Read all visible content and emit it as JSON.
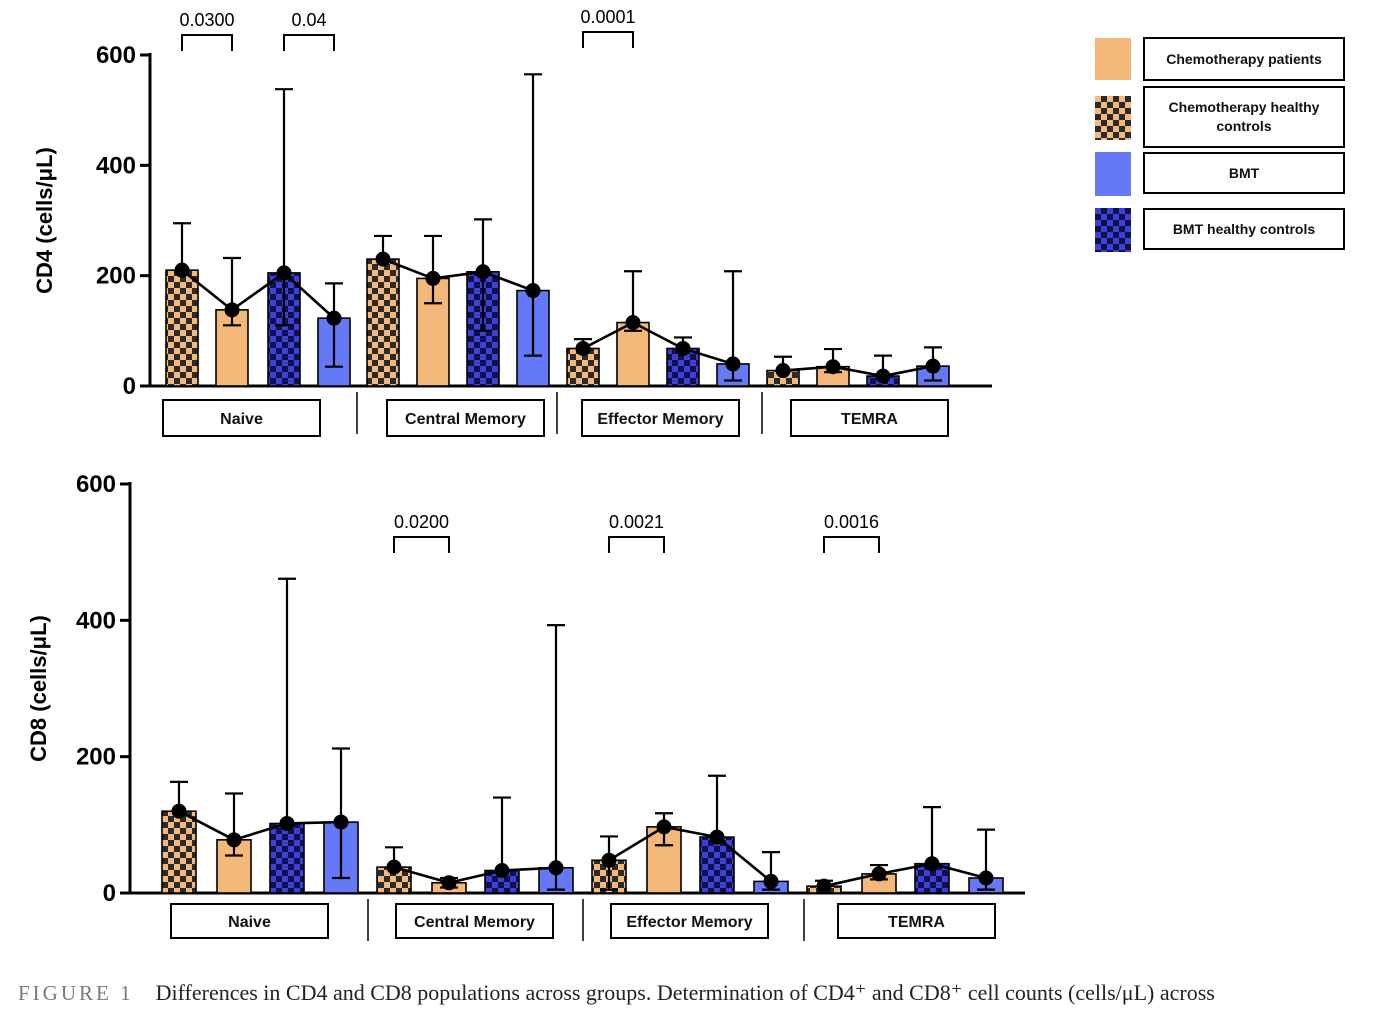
{
  "legend": {
    "items": [
      {
        "label": "Chemotherapy patients",
        "fill": "#f4b97a",
        "pattern": "solid"
      },
      {
        "label": "Chemotherapy healthy controls",
        "fill": "#f4b97a",
        "pattern": "checker"
      },
      {
        "label": "BMT",
        "fill": "#6579f7",
        "pattern": "solid"
      },
      {
        "label": "BMT healthy controls",
        "fill": "#3c3fd8",
        "pattern": "checker"
      }
    ]
  },
  "caption": {
    "label": "FIGURE 1",
    "text": "Differences in CD4 and CD8 populations across groups. Determination of CD4⁺ and CD8⁺ cell counts (cells/μL) across"
  },
  "colors": {
    "chemo": "#f4b97a",
    "bmt": "#6579f7",
    "bmt_dark": "#3c3fd8",
    "checker_dark": "#1a1a1a",
    "axis": "#000000"
  },
  "chart_data": [
    {
      "type": "bar",
      "ylabel": "CD4 (cells/μL)",
      "ylim": [
        0,
        600
      ],
      "yticks": [
        0,
        200,
        400,
        600
      ],
      "categories": [
        "Naive",
        "Central Memory",
        "Effector Memory",
        "TEMRA"
      ],
      "series": [
        {
          "name": "Chemotherapy healthy controls",
          "values": [
            210,
            230,
            68,
            28
          ],
          "err_high": [
            295,
            272,
            85,
            53
          ],
          "err_low": [
            null,
            null,
            null,
            null
          ]
        },
        {
          "name": "Chemotherapy patients",
          "values": [
            138,
            195,
            115,
            35
          ],
          "err_high": [
            232,
            272,
            208,
            67
          ],
          "err_low": [
            110,
            150,
            100,
            25
          ]
        },
        {
          "name": "BMT healthy controls",
          "values": [
            205,
            207,
            68,
            18
          ],
          "err_high": [
            538,
            302,
            88,
            55
          ],
          "err_low": [
            110,
            100,
            null,
            null
          ]
        },
        {
          "name": "BMT",
          "values": [
            123,
            173,
            40,
            36
          ],
          "err_high": [
            186,
            565,
            208,
            70
          ],
          "err_low": [
            35,
            55,
            10,
            10
          ]
        }
      ],
      "points": [
        [
          210,
          138,
          205,
          123
        ],
        [
          230,
          195,
          207,
          173
        ],
        [
          68,
          115,
          68,
          40
        ],
        [
          28,
          35,
          18,
          36
        ]
      ],
      "significance": [
        {
          "label": "0.0300",
          "category": 0,
          "from": 0,
          "to": 1
        },
        {
          "label": "0.04",
          "category": 0,
          "from": 2,
          "to": 3
        },
        {
          "label": "0.0001",
          "category": 2,
          "from": 0,
          "to": 1
        }
      ]
    },
    {
      "type": "bar",
      "ylabel": "CD8 (cells/μL)",
      "ylim": [
        0,
        600
      ],
      "yticks": [
        0,
        200,
        400,
        600
      ],
      "categories": [
        "Naive",
        "Central Memory",
        "Effector Memory",
        "TEMRA"
      ],
      "series": [
        {
          "name": "Chemotherapy healthy controls",
          "values": [
            120,
            38,
            48,
            10
          ],
          "err_high": [
            163,
            67,
            83,
            18
          ],
          "err_low": [
            null,
            null,
            5,
            null
          ]
        },
        {
          "name": "Chemotherapy patients",
          "values": [
            78,
            15,
            97,
            28
          ],
          "err_high": [
            146,
            22,
            117,
            41
          ],
          "err_low": [
            55,
            8,
            70,
            20
          ]
        },
        {
          "name": "BMT healthy controls",
          "values": [
            102,
            33,
            82,
            43
          ],
          "err_high": [
            461,
            140,
            172,
            126
          ],
          "err_low": [
            null,
            null,
            null,
            null
          ]
        },
        {
          "name": "BMT",
          "values": [
            104,
            37,
            17,
            22
          ],
          "err_high": [
            212,
            393,
            60,
            93
          ],
          "err_low": [
            22,
            5,
            5,
            5
          ]
        }
      ],
      "points": [
        [
          120,
          78,
          102,
          104
        ],
        [
          38,
          15,
          33,
          37
        ],
        [
          48,
          97,
          82,
          17
        ],
        [
          10,
          28,
          43,
          22
        ]
      ],
      "significance": [
        {
          "label": "0.0200",
          "category": 1,
          "from": 0,
          "to": 1
        },
        {
          "label": "0.0021",
          "category": 2,
          "from": 0,
          "to": 1
        },
        {
          "label": "0.0016",
          "category": 3,
          "from": 0,
          "to": 1
        }
      ]
    }
  ]
}
